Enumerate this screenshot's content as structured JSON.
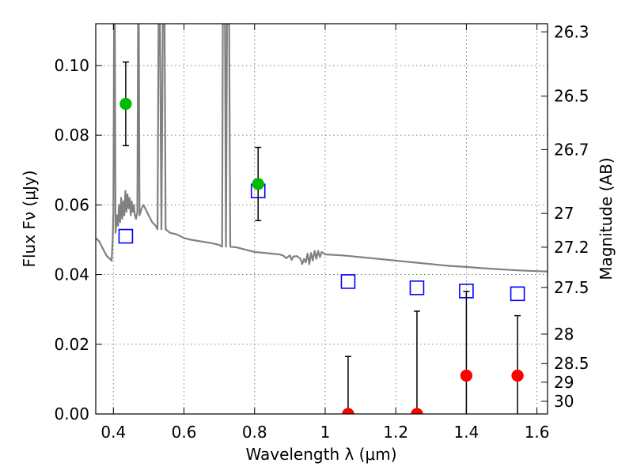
{
  "chart_data": {
    "type": "scatter",
    "title": "",
    "xlabel": "Wavelength  λ (μm)",
    "ylabel": "Flux  Fν (μJy)",
    "y2label": "Magnitude (AB)",
    "xlim": [
      0.35,
      1.63
    ],
    "ylim": [
      0.0,
      0.112
    ],
    "grid": true,
    "x_ticks": [
      {
        "value": 0.4,
        "label": "0.4"
      },
      {
        "value": 0.6,
        "label": "0.6"
      },
      {
        "value": 0.8,
        "label": "0.8"
      },
      {
        "value": 1.0,
        "label": "1"
      },
      {
        "value": 1.2,
        "label": "1.2"
      },
      {
        "value": 1.4,
        "label": "1.4"
      },
      {
        "value": 1.6,
        "label": "1.6"
      }
    ],
    "y_ticks": [
      {
        "value": 0.0,
        "label": "0.00"
      },
      {
        "value": 0.02,
        "label": "0.02"
      },
      {
        "value": 0.04,
        "label": "0.04"
      },
      {
        "value": 0.06,
        "label": "0.06"
      },
      {
        "value": 0.08,
        "label": "0.08"
      },
      {
        "value": 0.1,
        "label": "0.10"
      }
    ],
    "mag_ticks": [
      {
        "mag": 26.3,
        "label": "26.3"
      },
      {
        "mag": 26.5,
        "label": "26.5"
      },
      {
        "mag": 26.7,
        "label": "26.7"
      },
      {
        "mag": 27.0,
        "label": "27"
      },
      {
        "mag": 27.2,
        "label": "27.2"
      },
      {
        "mag": 27.5,
        "label": "27.5"
      },
      {
        "mag": 28.0,
        "label": "28"
      },
      {
        "mag": 28.5,
        "label": "28.5"
      },
      {
        "mag": 29.0,
        "label": "29"
      },
      {
        "mag": 30.0,
        "label": "30"
      }
    ],
    "series": [
      {
        "kind": "line",
        "color": "#808080",
        "points": [
          [
            0.35,
            0.0505
          ],
          [
            0.36,
            0.0495
          ],
          [
            0.37,
            0.0475
          ],
          [
            0.38,
            0.0455
          ],
          [
            0.39,
            0.0445
          ],
          [
            0.395,
            0.044
          ],
          [
            0.398,
            0.05
          ],
          [
            0.4,
            0.058
          ],
          [
            0.402,
            0.112
          ],
          [
            0.404,
            0.112
          ],
          [
            0.406,
            0.052
          ],
          [
            0.41,
            0.057
          ],
          [
            0.413,
            0.054
          ],
          [
            0.416,
            0.06
          ],
          [
            0.419,
            0.055
          ],
          [
            0.422,
            0.062
          ],
          [
            0.425,
            0.056
          ],
          [
            0.428,
            0.061
          ],
          [
            0.431,
            0.057
          ],
          [
            0.434,
            0.064
          ],
          [
            0.437,
            0.058
          ],
          [
            0.44,
            0.063
          ],
          [
            0.443,
            0.059
          ],
          [
            0.446,
            0.062
          ],
          [
            0.449,
            0.057
          ],
          [
            0.452,
            0.061
          ],
          [
            0.455,
            0.058
          ],
          [
            0.458,
            0.06
          ],
          [
            0.461,
            0.057
          ],
          [
            0.464,
            0.056
          ],
          [
            0.468,
            0.058
          ],
          [
            0.47,
            0.112
          ],
          [
            0.472,
            0.112
          ],
          [
            0.474,
            0.057
          ],
          [
            0.48,
            0.059
          ],
          [
            0.485,
            0.06
          ],
          [
            0.49,
            0.059
          ],
          [
            0.5,
            0.057
          ],
          [
            0.51,
            0.055
          ],
          [
            0.52,
            0.054
          ],
          [
            0.525,
            0.053
          ],
          [
            0.528,
            0.112
          ],
          [
            0.532,
            0.112
          ],
          [
            0.536,
            0.053
          ],
          [
            0.54,
            0.112
          ],
          [
            0.545,
            0.112
          ],
          [
            0.548,
            0.053
          ],
          [
            0.56,
            0.052
          ],
          [
            0.58,
            0.0515
          ],
          [
            0.6,
            0.0505
          ],
          [
            0.62,
            0.05
          ],
          [
            0.65,
            0.0495
          ],
          [
            0.68,
            0.049
          ],
          [
            0.7,
            0.0485
          ],
          [
            0.708,
            0.048
          ],
          [
            0.71,
            0.112
          ],
          [
            0.716,
            0.112
          ],
          [
            0.719,
            0.048
          ],
          [
            0.722,
            0.112
          ],
          [
            0.728,
            0.112
          ],
          [
            0.731,
            0.048
          ],
          [
            0.75,
            0.0478
          ],
          [
            0.78,
            0.047
          ],
          [
            0.8,
            0.0465
          ],
          [
            0.82,
            0.0463
          ],
          [
            0.85,
            0.046
          ],
          [
            0.87,
            0.0458
          ],
          [
            0.88,
            0.0455
          ],
          [
            0.89,
            0.0447
          ],
          [
            0.9,
            0.0455
          ],
          [
            0.905,
            0.0442
          ],
          [
            0.91,
            0.0452
          ],
          [
            0.92,
            0.0453
          ],
          [
            0.93,
            0.0445
          ],
          [
            0.935,
            0.043
          ],
          [
            0.94,
            0.0445
          ],
          [
            0.945,
            0.0435
          ],
          [
            0.95,
            0.046
          ],
          [
            0.955,
            0.043
          ],
          [
            0.96,
            0.0462
          ],
          [
            0.965,
            0.044
          ],
          [
            0.97,
            0.0468
          ],
          [
            0.975,
            0.0445
          ],
          [
            0.98,
            0.0468
          ],
          [
            0.985,
            0.045
          ],
          [
            0.99,
            0.0465
          ],
          [
            1.0,
            0.0458
          ],
          [
            1.05,
            0.0455
          ],
          [
            1.1,
            0.045
          ],
          [
            1.15,
            0.0445
          ],
          [
            1.2,
            0.044
          ],
          [
            1.25,
            0.0435
          ],
          [
            1.3,
            0.043
          ],
          [
            1.35,
            0.0425
          ],
          [
            1.4,
            0.0422
          ],
          [
            1.45,
            0.0418
          ],
          [
            1.5,
            0.0415
          ],
          [
            1.55,
            0.0412
          ],
          [
            1.6,
            0.041
          ],
          [
            1.63,
            0.0409
          ]
        ]
      },
      {
        "kind": "squares",
        "color": "#0000ff",
        "points": [
          [
            0.435,
            0.051
          ],
          [
            0.81,
            0.064
          ],
          [
            1.065,
            0.038
          ],
          [
            1.26,
            0.0362
          ],
          [
            1.4,
            0.0353
          ],
          [
            1.545,
            0.0345
          ]
        ]
      },
      {
        "kind": "detections",
        "color": "#00bb00",
        "points": [
          {
            "x": 0.435,
            "y": 0.089,
            "err": 0.012
          },
          {
            "x": 0.81,
            "y": 0.066,
            "err": 0.0105
          }
        ]
      },
      {
        "kind": "upper_limits",
        "color": "#ff0000",
        "points": [
          {
            "x": 1.065,
            "y": 0.0,
            "top": 0.0165
          },
          {
            "x": 1.26,
            "y": 0.0,
            "top": 0.0295
          },
          {
            "x": 1.4,
            "y": 0.011,
            "top": 0.0352
          },
          {
            "x": 1.545,
            "y": 0.011,
            "top": 0.0282
          }
        ]
      }
    ]
  }
}
